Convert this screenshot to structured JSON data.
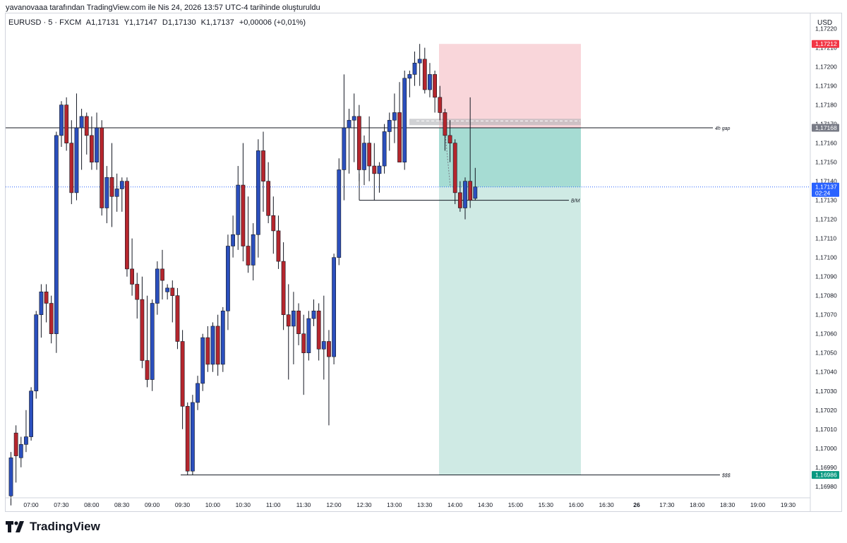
{
  "header": {
    "snapshot_text": "yavanovaaa tarafından TradingView.com ile Nis 24, 2026 13:57 UTC-4 tarihinde oluşturuldu"
  },
  "symbol_bar": {
    "symbol": "EURUSD · 5 · FXCM",
    "open": "A1,17131",
    "high": "Y1,17147",
    "low": "D1,17130",
    "close": "K1,17137",
    "change": "+0,00006 (+0,01%)"
  },
  "price_axis": {
    "currency": "USD",
    "ticks": [
      "1,17220",
      "1,17210",
      "1,17200",
      "1,17190",
      "1,17180",
      "1,17170",
      "1,17160",
      "1,17150",
      "1,17140",
      "1,17130",
      "1,17120",
      "1,17110",
      "1,17100",
      "1,17090",
      "1,17080",
      "1,17070",
      "1,17060",
      "1,17050",
      "1,17040",
      "1,17030",
      "1,17020",
      "1,17010",
      "1,17000",
      "1,16990",
      "1,16980"
    ],
    "badges": [
      {
        "label": "1,17212",
        "value": 1.17212,
        "color": "#f23645"
      },
      {
        "label": "1,17168",
        "value": 1.17168,
        "color": "#787b86"
      },
      {
        "label": "1,17137",
        "sub": "02:24",
        "value": 1.17137,
        "color": "#2962ff"
      },
      {
        "label": "1,16986",
        "value": 1.16986,
        "color": "#089981"
      }
    ]
  },
  "time_axis": {
    "ticks": [
      "07:00",
      "07:30",
      "08:00",
      "08:30",
      "09:00",
      "09:30",
      "10:00",
      "10:30",
      "11:00",
      "11:30",
      "12:00",
      "12:30",
      "13:00",
      "13:30",
      "14:00",
      "14:30",
      "15:00",
      "15:30",
      "16:00",
      "16:30",
      "26",
      "17:30",
      "18:00",
      "18:30",
      "19:00",
      "19:30"
    ]
  },
  "annotations": {
    "gap_label": "4h gap",
    "bm_label": "B/M",
    "liquidity_label": "$$$"
  },
  "colors": {
    "up": "#2b4fbd",
    "down": "#b5262d",
    "stop_zone": "#f9d6da",
    "target_zone": "#cfeae4",
    "entry_zone": "#a6dcd3",
    "last_price_line": "#2962ff"
  },
  "logo": {
    "text": "TradingView"
  },
  "chart_data": {
    "type": "candlestick",
    "title": "EURUSD · 5 · FXCM",
    "ylim": [
      1.16974,
      1.17228
    ],
    "x_first": "06:45",
    "x_interval_minutes": 5,
    "candles": [
      [
        1.16975,
        1.16998,
        1.1697,
        1.16995
      ],
      [
        1.17008,
        1.17012,
        1.16982,
        1.16996
      ],
      [
        1.16995,
        1.17006,
        1.1699,
        1.17002
      ],
      [
        1.17002,
        1.1702,
        1.16998,
        1.17006
      ],
      [
        1.17006,
        1.17032,
        1.17004,
        1.1703
      ],
      [
        1.1703,
        1.17072,
        1.17026,
        1.1707
      ],
      [
        1.1707,
        1.17086,
        1.17058,
        1.17082
      ],
      [
        1.17082,
        1.17086,
        1.17066,
        1.17076
      ],
      [
        1.17076,
        1.1708,
        1.17055,
        1.1706
      ],
      [
        1.1706,
        1.17166,
        1.1705,
        1.17164
      ],
      [
        1.17164,
        1.17182,
        1.17158,
        1.1718
      ],
      [
        1.1718,
        1.17184,
        1.17156,
        1.1716
      ],
      [
        1.1716,
        1.17172,
        1.17128,
        1.17134
      ],
      [
        1.17134,
        1.17186,
        1.1713,
        1.17168
      ],
      [
        1.17168,
        1.17178,
        1.17146,
        1.17174
      ],
      [
        1.17174,
        1.17176,
        1.17154,
        1.17164
      ],
      [
        1.17164,
        1.17174,
        1.17146,
        1.1715
      ],
      [
        1.1715,
        1.17176,
        1.17146,
        1.17168
      ],
      [
        1.17168,
        1.17172,
        1.17122,
        1.17126
      ],
      [
        1.17126,
        1.17148,
        1.17118,
        1.17142
      ],
      [
        1.17142,
        1.1716,
        1.17116,
        1.17132
      ],
      [
        1.17132,
        1.17144,
        1.17124,
        1.17136
      ],
      [
        1.17136,
        1.17142,
        1.17124,
        1.1714
      ],
      [
        1.1714,
        1.17142,
        1.1709,
        1.17094
      ],
      [
        1.17094,
        1.1711,
        1.1708,
        1.17086
      ],
      [
        1.17086,
        1.17092,
        1.17068,
        1.17078
      ],
      [
        1.17078,
        1.1709,
        1.17042,
        1.17046
      ],
      [
        1.17046,
        1.1708,
        1.17032,
        1.17036
      ],
      [
        1.17036,
        1.17078,
        1.1703,
        1.17076
      ],
      [
        1.17076,
        1.17098,
        1.1707,
        1.17094
      ],
      [
        1.17094,
        1.17104,
        1.17078,
        1.17088
      ],
      [
        1.17082,
        1.17086,
        1.17078,
        1.17084
      ],
      [
        1.17084,
        1.17088,
        1.17066,
        1.1708
      ],
      [
        1.1708,
        1.17084,
        1.17052,
        1.17056
      ],
      [
        1.17056,
        1.17062,
        1.1701,
        1.17022
      ],
      [
        1.17022,
        1.17024,
        1.16986,
        1.16988
      ],
      [
        1.16988,
        1.17028,
        1.16986,
        1.17024
      ],
      [
        1.17024,
        1.17038,
        1.1702,
        1.17034
      ],
      [
        1.17034,
        1.1706,
        1.1703,
        1.17058
      ],
      [
        1.17058,
        1.17064,
        1.1704,
        1.17044
      ],
      [
        1.17044,
        1.17066,
        1.1704,
        1.17064
      ],
      [
        1.17064,
        1.1707,
        1.17038,
        1.17044
      ],
      [
        1.17044,
        1.17074,
        1.1704,
        1.17072
      ],
      [
        1.17072,
        1.17112,
        1.17062,
        1.17106
      ],
      [
        1.17106,
        1.17122,
        1.171,
        1.17112
      ],
      [
        1.17112,
        1.17148,
        1.17104,
        1.17138
      ],
      [
        1.17138,
        1.1716,
        1.17098,
        1.17106
      ],
      [
        1.17106,
        1.17132,
        1.17092,
        1.17096
      ],
      [
        1.17096,
        1.17118,
        1.17088,
        1.17112
      ],
      [
        1.17112,
        1.17162,
        1.171,
        1.17156
      ],
      [
        1.17156,
        1.17166,
        1.17124,
        1.1714
      ],
      [
        1.1714,
        1.1715,
        1.17118,
        1.17122
      ],
      [
        1.17122,
        1.17132,
        1.17102,
        1.17114
      ],
      [
        1.17114,
        1.17122,
        1.17094,
        1.17098
      ],
      [
        1.17098,
        1.17108,
        1.17062,
        1.1707
      ],
      [
        1.1707,
        1.17086,
        1.17036,
        1.17064
      ],
      [
        1.17064,
        1.17082,
        1.17044,
        1.17072
      ],
      [
        1.17072,
        1.17076,
        1.17054,
        1.1706
      ],
      [
        1.1706,
        1.1707,
        1.17028,
        1.1705
      ],
      [
        1.1705,
        1.17072,
        1.17046,
        1.17068
      ],
      [
        1.17068,
        1.17078,
        1.17064,
        1.17072
      ],
      [
        1.17072,
        1.17076,
        1.17046,
        1.17052
      ],
      [
        1.17052,
        1.1708,
        1.17036,
        1.17056
      ],
      [
        1.17056,
        1.17062,
        1.17012,
        1.17048
      ],
      [
        1.17048,
        1.17102,
        1.17044,
        1.171
      ],
      [
        1.171,
        1.17152,
        1.17096,
        1.17146
      ],
      [
        1.17146,
        1.17196,
        1.1713,
        1.17168
      ],
      [
        1.17168,
        1.17178,
        1.17144,
        1.17172
      ],
      [
        1.17172,
        1.17186,
        1.1715,
        1.17174
      ],
      [
        1.17174,
        1.1718,
        1.1714,
        1.17146
      ],
      [
        1.17146,
        1.17164,
        1.17138,
        1.1716
      ],
      [
        1.1716,
        1.17174,
        1.1714,
        1.17148
      ],
      [
        1.17148,
        1.1716,
        1.1713,
        1.17144
      ],
      [
        1.17144,
        1.1715,
        1.17134,
        1.17148
      ],
      [
        1.17148,
        1.1717,
        1.17144,
        1.17166
      ],
      [
        1.17166,
        1.17176,
        1.17156,
        1.17172
      ],
      [
        1.17172,
        1.17186,
        1.1716,
        1.17176
      ],
      [
        1.17176,
        1.17192,
        1.1715,
        1.1715
      ],
      [
        1.1715,
        1.17198,
        1.17146,
        1.17194
      ],
      [
        1.17194,
        1.17198,
        1.17184,
        1.17196
      ],
      [
        1.17196,
        1.17208,
        1.1719,
        1.17202
      ],
      [
        1.17202,
        1.17212,
        1.1719,
        1.17204
      ],
      [
        1.17204,
        1.1721,
        1.17186,
        1.17188
      ],
      [
        1.17188,
        1.17202,
        1.17184,
        1.17196
      ],
      [
        1.17196,
        1.17198,
        1.17176,
        1.17184
      ],
      [
        1.17184,
        1.1719,
        1.17172,
        1.17176
      ],
      [
        1.17176,
        1.17178,
        1.17156,
        1.17164
      ],
      [
        1.17164,
        1.17172,
        1.1715,
        1.1716
      ],
      [
        1.1716,
        1.17162,
        1.17128,
        1.17134
      ],
      [
        1.17134,
        1.1714,
        1.17124,
        1.17126
      ],
      [
        1.17126,
        1.17142,
        1.1712,
        1.1714
      ],
      [
        1.1714,
        1.17184,
        1.17126,
        1.1713
      ],
      [
        1.17131,
        1.17147,
        1.1713,
        1.17137
      ]
    ],
    "levels": [
      {
        "name": "4h gap",
        "value": 1.17168
      },
      {
        "name": "B/M",
        "value": 1.1713
      },
      {
        "name": "$$$",
        "value": 1.16986
      }
    ],
    "position": {
      "entry": 1.17168,
      "stop": 1.17212,
      "target": 1.16986
    },
    "last_price": 1.17137
  }
}
